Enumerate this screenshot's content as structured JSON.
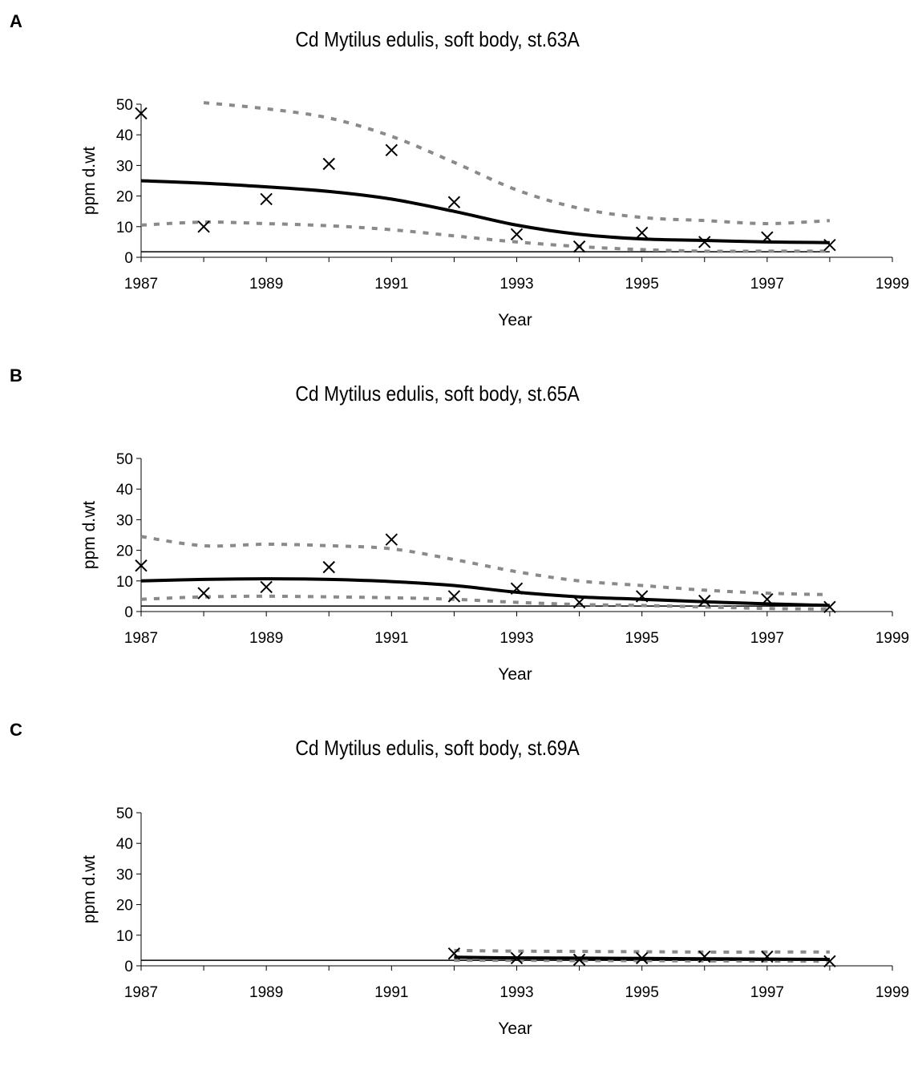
{
  "chart_data": [
    {
      "panel_label": "A",
      "type": "line",
      "title": "Cd Mytilus edulis, soft body, st.63A",
      "xlabel": "Year",
      "ylabel": "ppm  d.wt",
      "xlim": [
        1987,
        1999
      ],
      "ylim": [
        0,
        50
      ],
      "xticks": [
        "1987",
        "1989",
        "1991",
        "1993",
        "1995",
        "1997",
        "1999"
      ],
      "yticks": [
        "0",
        "10",
        "20",
        "30",
        "40",
        "50"
      ],
      "grid": false,
      "legend": "none",
      "observations": {
        "x": [
          1987,
          1988,
          1989,
          1990,
          1991,
          1992,
          1993,
          1994,
          1995,
          1996,
          1997,
          1998
        ],
        "y": [
          47,
          10,
          19,
          30.5,
          35,
          18,
          7.5,
          3.5,
          8,
          5,
          6.5,
          4
        ]
      },
      "trend": {
        "x": [
          1987,
          1988,
          1989,
          1990,
          1991,
          1992,
          1993,
          1994,
          1995,
          1996,
          1997,
          1998
        ],
        "y": [
          25,
          24.2,
          23,
          21.5,
          19,
          15,
          10.5,
          7.5,
          6,
          5.5,
          5,
          4.8
        ]
      },
      "upper_band": {
        "x": [
          1988,
          1989,
          1990,
          1991,
          1992,
          1993,
          1994,
          1995,
          1996,
          1997,
          1998
        ],
        "y": [
          50.5,
          48.5,
          45.5,
          39.5,
          31,
          22,
          16,
          13,
          12,
          11,
          12
        ]
      },
      "lower_band": {
        "x": [
          1987,
          1988,
          1989,
          1990,
          1991,
          1992,
          1993,
          1994,
          1995,
          1996,
          1997,
          1998
        ],
        "y": [
          10.5,
          11.5,
          11,
          10.3,
          9,
          7,
          5,
          3.5,
          2.5,
          2,
          2,
          2
        ]
      },
      "reference_line": 1.8
    },
    {
      "panel_label": "B",
      "type": "line",
      "title": "Cd Mytilus edulis, soft body, st.65A",
      "xlabel": "Year",
      "ylabel": "ppm  d.wt",
      "xlim": [
        1987,
        1999
      ],
      "ylim": [
        0,
        50
      ],
      "xticks": [
        "1987",
        "1989",
        "1991",
        "1993",
        "1995",
        "1997",
        "1999"
      ],
      "yticks": [
        "0",
        "10",
        "20",
        "30",
        "40",
        "50"
      ],
      "grid": false,
      "legend": "none",
      "observations": {
        "x": [
          1987,
          1988,
          1989,
          1990,
          1991,
          1992,
          1993,
          1994,
          1995,
          1996,
          1997,
          1998
        ],
        "y": [
          15,
          6,
          8,
          14.5,
          23.5,
          5,
          7.5,
          3,
          5,
          3.5,
          4,
          1.5
        ]
      },
      "trend": {
        "x": [
          1987,
          1988,
          1989,
          1990,
          1991,
          1992,
          1993,
          1994,
          1995,
          1996,
          1997,
          1998
        ],
        "y": [
          10,
          10.5,
          10.7,
          10.5,
          9.8,
          8.5,
          6.3,
          4.8,
          4,
          3.2,
          2.5,
          2
        ]
      },
      "upper_band": {
        "x": [
          1987,
          1988,
          1989,
          1990,
          1991,
          1992,
          1993,
          1994,
          1995,
          1996,
          1997,
          1998
        ],
        "y": [
          24.5,
          21.5,
          22,
          21.5,
          20.5,
          17,
          13,
          10,
          8.5,
          7,
          6,
          5.5
        ]
      },
      "lower_band": {
        "x": [
          1987,
          1988,
          1989,
          1990,
          1991,
          1992,
          1993,
          1994,
          1995,
          1996,
          1997,
          1998
        ],
        "y": [
          4,
          4.8,
          5,
          4.8,
          4.5,
          4,
          3,
          2.3,
          2,
          1.5,
          1,
          0.8
        ]
      },
      "reference_line": 1.8
    },
    {
      "panel_label": "C",
      "type": "line",
      "title": "Cd Mytilus edulis, soft body, st.69A",
      "xlabel": "Year",
      "ylabel": "ppm  d.wt",
      "xlim": [
        1987,
        1999
      ],
      "ylim": [
        0,
        50
      ],
      "xticks": [
        "1987",
        "1989",
        "1991",
        "1993",
        "1995",
        "1997",
        "1999"
      ],
      "yticks": [
        "0",
        "10",
        "20",
        "30",
        "40",
        "50"
      ],
      "grid": false,
      "legend": "none",
      "observations": {
        "x": [
          1992,
          1993,
          1994,
          1995,
          1996,
          1997,
          1998
        ],
        "y": [
          4,
          2.5,
          2,
          2.5,
          3,
          3,
          1.5
        ]
      },
      "trend": {
        "x": [
          1992,
          1993,
          1994,
          1995,
          1996,
          1997,
          1998
        ],
        "y": [
          2.8,
          2.6,
          2.5,
          2.4,
          2.3,
          2.2,
          2.1
        ]
      },
      "upper_band": {
        "x": [
          1992,
          1993,
          1994,
          1995,
          1996,
          1997,
          1998
        ],
        "y": [
          5,
          4.8,
          4.7,
          4.6,
          4.5,
          4.5,
          4.5
        ]
      },
      "lower_band": {
        "x": [
          1992,
          1993,
          1994,
          1995,
          1996,
          1997,
          1998
        ],
        "y": [
          1.8,
          1.8,
          1.7,
          1.7,
          1.6,
          1.6,
          1.5
        ]
      },
      "reference_line": 1.8
    }
  ]
}
